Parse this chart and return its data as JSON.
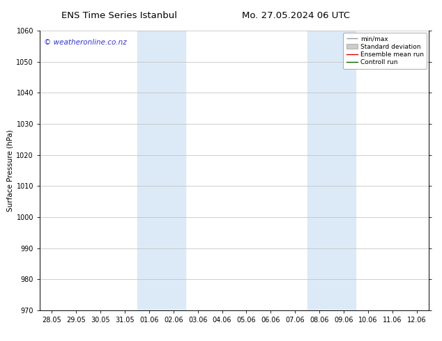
{
  "title_left": "ENS Time Series Istanbul",
  "title_right": "Mo. 27.05.2024 06 UTC",
  "ylabel": "Surface Pressure (hPa)",
  "ylim": [
    970,
    1060
  ],
  "yticks": [
    970,
    980,
    990,
    1000,
    1010,
    1020,
    1030,
    1040,
    1050,
    1060
  ],
  "x_tick_labels": [
    "28.05",
    "29.05",
    "30.05",
    "31.05",
    "01.06",
    "02.06",
    "03.06",
    "04.06",
    "05.06",
    "06.06",
    "07.06",
    "08.06",
    "09.06",
    "10.06",
    "11.06",
    "12.06"
  ],
  "x_tick_positions": [
    0,
    1,
    2,
    3,
    4,
    5,
    6,
    7,
    8,
    9,
    10,
    11,
    12,
    13,
    14,
    15
  ],
  "shaded_regions": [
    {
      "xmin": 3.5,
      "xmax": 5.5
    },
    {
      "xmin": 10.5,
      "xmax": 12.5
    }
  ],
  "shaded_color": "#dceaf7",
  "watermark_text": "© weatheronline.co.nz",
  "watermark_color": "#3333cc",
  "legend_entries": [
    {
      "label": "min/max"
    },
    {
      "label": "Standard deviation"
    },
    {
      "label": "Ensemble mean run"
    },
    {
      "label": "Controll run"
    }
  ],
  "minmax_color": "#999999",
  "stddev_color": "#cccccc",
  "ensemble_color": "#dd0000",
  "control_color": "#006600",
  "background_color": "#ffffff",
  "grid_color": "#bbbbbb",
  "font_color": "#000000",
  "title_fontsize": 9.5,
  "label_fontsize": 7.5,
  "tick_fontsize": 7,
  "legend_fontsize": 6.5,
  "watermark_fontsize": 7.5
}
